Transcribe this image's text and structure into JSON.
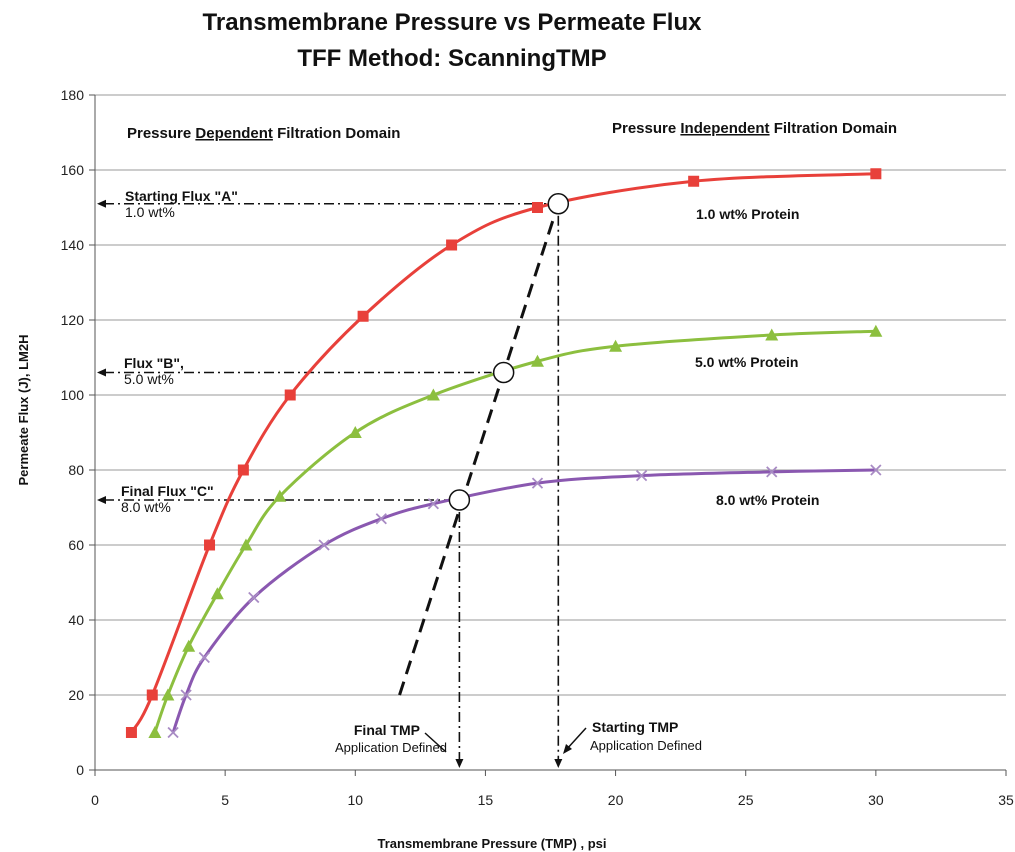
{
  "chart_data": {
    "type": "line",
    "title": "Transmembrane Pressure  vs Permeate Flux",
    "subtitle": "TFF Method: ScanningTMP",
    "xlabel": "Transmembrane Pressure (TMP) , psi",
    "ylabel": "Permeate Flux (J), LM2H",
    "xlim": [
      0,
      35
    ],
    "ylim": [
      0,
      180
    ],
    "xticks": [
      0,
      5,
      10,
      15,
      20,
      25,
      30,
      35
    ],
    "yticks": [
      0,
      20,
      40,
      60,
      80,
      100,
      120,
      140,
      160,
      180
    ],
    "grid": "horizontal",
    "domain_labels": {
      "dependent": [
        "Pressure ",
        "Dependent",
        " Filtration Domain"
      ],
      "independent": [
        "Pressure ",
        "Independent",
        " Filtration Domain"
      ]
    },
    "series": [
      {
        "name": "1.0 wt%  Protein",
        "color": "#e8403a",
        "marker": "square",
        "x": [
          1.4,
          2.2,
          4.4,
          5.7,
          7.5,
          10.3,
          13.7,
          17.0,
          23.0,
          30.0
        ],
        "y": [
          10,
          20,
          60,
          80,
          100,
          121,
          140,
          150,
          157,
          159
        ]
      },
      {
        "name": "5.0 wt%  Protein",
        "color": "#8cbf3f",
        "marker": "triangle",
        "x": [
          2.3,
          2.8,
          3.6,
          4.7,
          5.8,
          7.1,
          10.0,
          13.0,
          17.0,
          20.0,
          26.0,
          30.0
        ],
        "y": [
          10,
          20,
          33,
          47,
          60,
          73,
          90,
          100,
          109,
          113,
          116,
          117
        ]
      },
      {
        "name": "8.0 wt%  Protein",
        "color": "#8a58b0",
        "marker": "x",
        "x": [
          3.0,
          3.5,
          4.2,
          6.1,
          8.8,
          11.0,
          13.0,
          17.0,
          21.0,
          26.0,
          30.0
        ],
        "y": [
          10,
          20,
          30,
          46,
          60,
          67,
          71,
          76.5,
          78.5,
          79.5,
          80
        ]
      }
    ],
    "operating_points": [
      {
        "x": 17.8,
        "y": 151
      },
      {
        "x": 15.7,
        "y": 106
      },
      {
        "x": 14.0,
        "y": 72
      }
    ],
    "annotations": {
      "flux_a": {
        "title": "Starting Flux \"A\"",
        "sub": "1.0 wt%"
      },
      "flux_b": {
        "title": "Flux \"B\",",
        "sub": "5.0 wt%"
      },
      "flux_c": {
        "title": "Final Flux \"C\"",
        "sub": "8.0 wt%"
      },
      "final_tmp": {
        "title": "Final TMP",
        "sub": "Application Defined"
      },
      "starting_tmp": {
        "title": "Starting TMP",
        "sub": "Application Defined"
      }
    }
  }
}
